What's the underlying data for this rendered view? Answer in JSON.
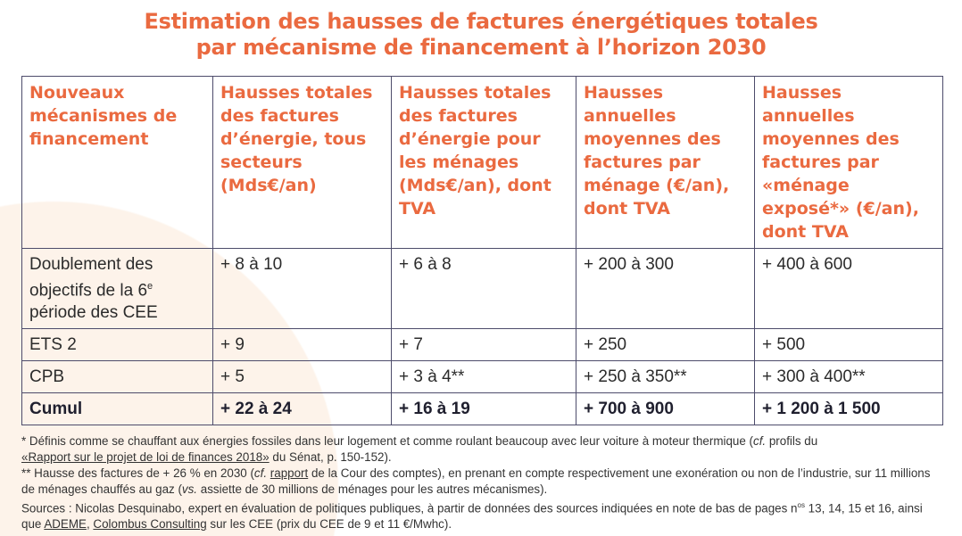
{
  "title": {
    "line1": "Estimation des hausses de factures énergétiques totales",
    "line2": "par mécanisme de financement à l’horizon 2030"
  },
  "headers": [
    "Nouveaux mécanismes de financement",
    "Hausses totales des factures d’énergie, tous secteurs (Mds€/an)",
    "Hausses totales des factures d’énergie pour les ménages (Mds€/an), dont TVA",
    "Hausses annuelles moyennes des factures par ménage (€/an), dont TVA",
    "Hausses annuelles moyennes des factures par «ménage exposé*» (€/an), dont TVA"
  ],
  "rows": [
    {
      "label_pre": "Doublement des objectifs de la 6",
      "label_sup": "e",
      "label_post": " période des CEE",
      "cells": [
        "+ 8 à 10",
        "+ 6 à 8",
        "+ 200 à 300",
        "+ 400 à 600"
      ]
    },
    {
      "label": "ETS 2",
      "cells": [
        "+ 9",
        "+ 7",
        "+ 250",
        "+ 500"
      ]
    },
    {
      "label": "CPB",
      "cells": [
        "+ 5",
        "+ 3 à 4**",
        "+ 250 à 350**",
        "+ 300 à 400**"
      ]
    },
    {
      "label": "Cumul",
      "cells": [
        "+ 22 à 24",
        "+ 16 à 19",
        "+ 700 à 900",
        "+ 1 200 à 1 500"
      ]
    }
  ],
  "notes": {
    "n1_a": "* Définis comme se chauffant aux énergies fossiles dans leur logement et comme roulant beaucoup avec leur voiture à moteur thermique (",
    "cf": "cf.",
    "n1_b": " profils du ",
    "n1_link": "«Rapport sur le projet de loi de finances 2018»",
    "n1_c": " du Sénat, p. 150-152).",
    "n2_a": "** Hausse des factures de + 26 % en 2030 (",
    "n2_b": " ",
    "n2_link": "rapport",
    "n2_c": " de la Cour des comptes), en prenant en compte respectivement une exonération ou non de l’industrie, sur 11 millions de ménages chauffés au gaz (",
    "vs": "vs.",
    "n2_d": " assiette de 30 millions de ménages pour les autres mécanismes).",
    "s_a": "Sources : Nicolas Desquinabo, expert en évaluation de politiques publiques, à partir de données des sources indiquées en note de bas de pages n",
    "s_sup": "os",
    "s_b": " 13, 14, 15 et 16, ainsi que ",
    "s_link1": "ADEME",
    "s_c": ", ",
    "s_link2": "Colombus Consulting",
    "s_d": " sur les CEE (prix du CEE de 9 et 11 €/Mwhc)."
  }
}
